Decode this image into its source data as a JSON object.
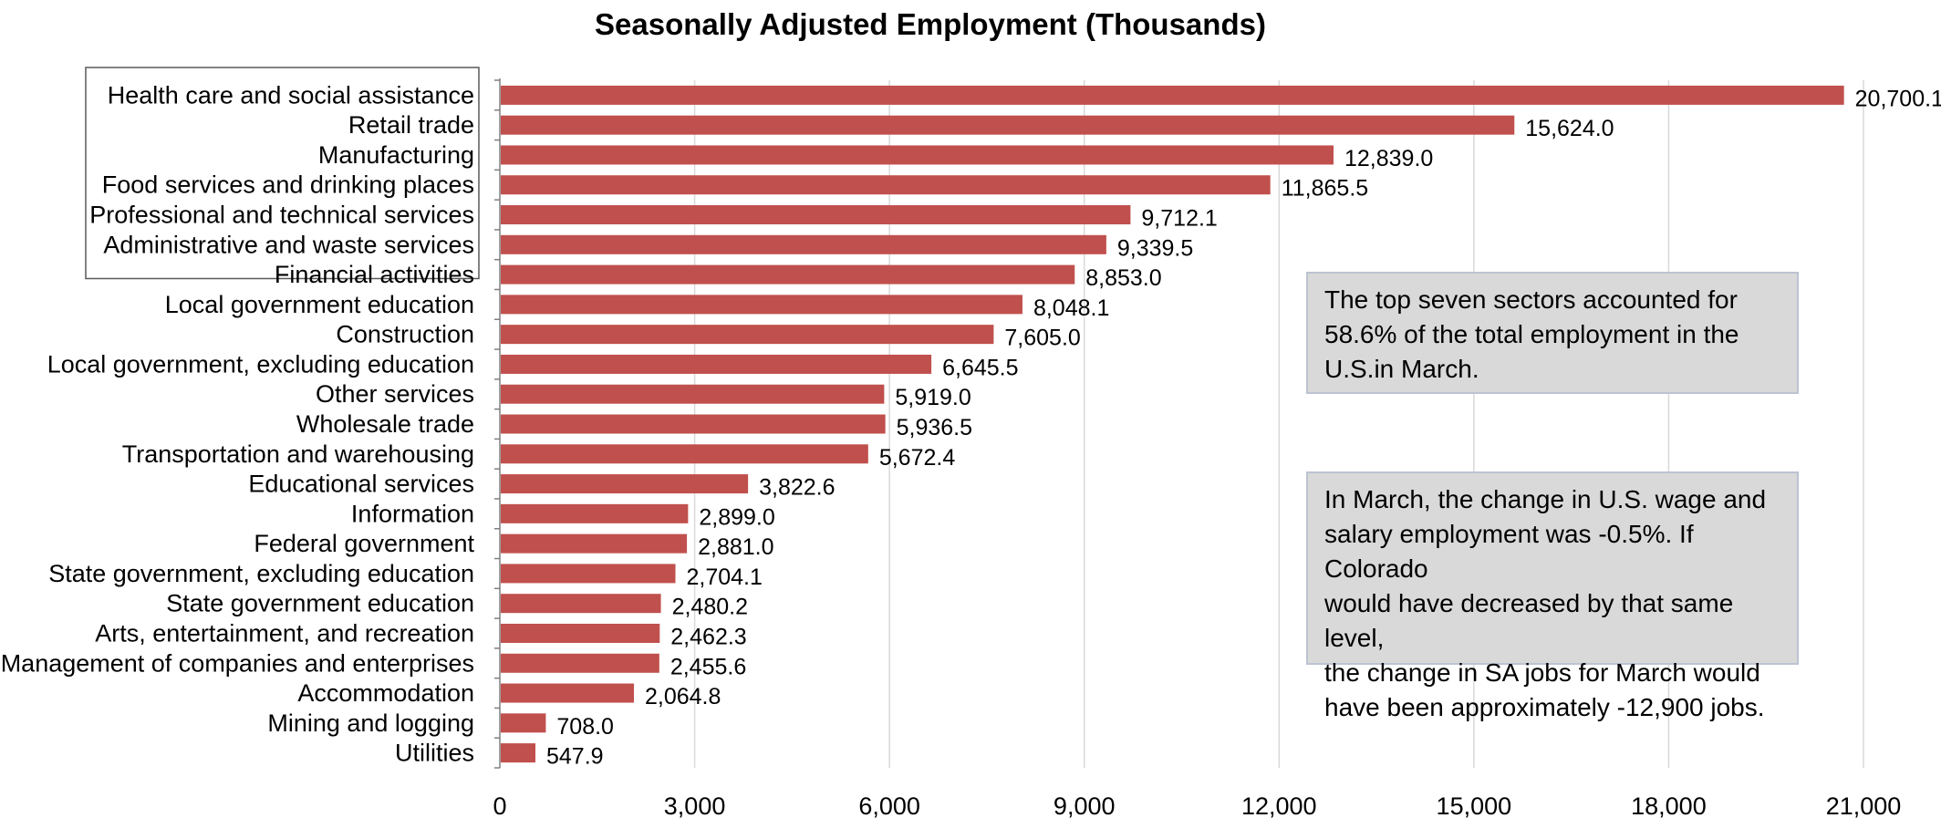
{
  "chart_data": {
    "type": "bar",
    "orientation": "horizontal",
    "title": "Seasonally Adjusted Employment (Thousands)",
    "xlabel": "",
    "ylabel": "",
    "xlim": [
      0,
      21000
    ],
    "x_ticks": [
      "0",
      "3,000",
      "6,000",
      "9,000",
      "12,000",
      "15,000",
      "18,000",
      "21,000"
    ],
    "grid": "vertical",
    "bar_color": "#c0504d",
    "categories": [
      "Health care and social assistance",
      "Retail trade",
      "Manufacturing",
      "Food services and drinking places",
      "Professional and technical services",
      "Administrative and waste services",
      "Financial activities",
      "Local government education",
      "Construction",
      "Local government, excluding education",
      "Other services",
      "Wholesale trade",
      "Transportation and warehousing",
      "Educational services",
      "Information",
      "Federal government",
      "State government, excluding education",
      "State government education",
      "Arts, entertainment, and recreation",
      "Management of companies and enterprises",
      "Accommodation",
      "Mining and logging",
      "Utilities"
    ],
    "values": [
      20700.1,
      15624.0,
      12839.0,
      11865.5,
      9712.1,
      9339.5,
      8853.0,
      8048.1,
      7605.0,
      6645.5,
      5919.0,
      5936.5,
      5672.4,
      3822.6,
      2899.0,
      2881.0,
      2704.1,
      2480.2,
      2462.3,
      2455.6,
      2064.8,
      708.0,
      547.9
    ],
    "value_labels": [
      "20,700.1",
      "15,624.0",
      "12,839.0",
      "11,865.5",
      "9,712.1",
      "9,339.5",
      "8,853.0",
      "8,048.1",
      "7,605.0",
      "6,645.5",
      "5,919.0",
      "5,936.5",
      "5,672.4",
      "3,822.6",
      "2,899.0",
      "2,881.0",
      "2,704.1",
      "2,480.2",
      "2,462.3",
      "2,455.6",
      "2,064.8",
      "708.0",
      "547.9"
    ],
    "highlighted_categories": 7
  },
  "callouts": {
    "top_sectors": [
      "The top seven sectors accounted for",
      "58.6% of the total employment in the",
      "U.S.in March."
    ],
    "change_note": [
      "In March, the change in U.S. wage and",
      "salary employment was -0.5%. If Colorado",
      "would have decreased by that same level,",
      "the change in SA jobs for March would",
      "have been approximately -12,900 jobs."
    ]
  }
}
